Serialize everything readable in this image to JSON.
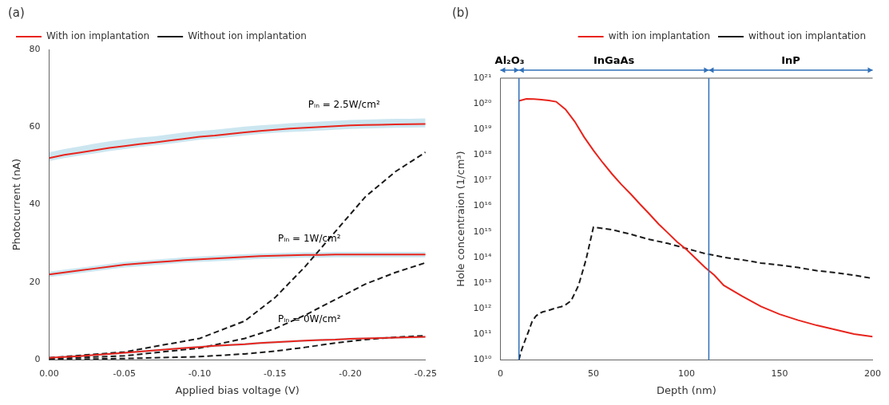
{
  "chart_data": [
    {
      "type": "line",
      "title": "(a)",
      "xlabel": "Applied bias voltage (V)",
      "ylabel": "Photocurrent (nA)",
      "xlim": [
        0.0,
        -0.25
      ],
      "xticks": [
        {
          "value": 0.0,
          "label": "0.00"
        },
        {
          "value": -0.05,
          "label": "-0.05"
        },
        {
          "value": -0.1,
          "label": "-0.10"
        },
        {
          "value": -0.15,
          "label": "-0.15"
        },
        {
          "value": -0.2,
          "label": "-0.20"
        },
        {
          "value": -0.25,
          "label": "-0.25"
        }
      ],
      "ylim": [
        0,
        80
      ],
      "yticks": [
        0,
        20,
        40,
        60,
        80
      ],
      "grid": false,
      "legend": "upper left",
      "band_color": "#b0d8e8",
      "series": [
        {
          "name": "With ion implantation",
          "color": "#e8241c",
          "line_style": "solid",
          "curves": [
            {
              "x": [
                0.0,
                -0.01,
                -0.02,
                -0.03,
                -0.04,
                -0.05,
                -0.06,
                -0.07,
                -0.08,
                -0.09,
                -0.1,
                -0.11,
                -0.12,
                -0.13,
                -0.14,
                -0.15,
                -0.16,
                -0.17,
                -0.18,
                -0.19,
                -0.2,
                -0.21,
                -0.22,
                -0.23,
                -0.24,
                -0.25
              ],
              "values": [
                52.0,
                52.8,
                53.4,
                54.0,
                54.6,
                55.1,
                55.6,
                56.0,
                56.5,
                57.0,
                57.5,
                57.8,
                58.2,
                58.6,
                59.0,
                59.3,
                59.6,
                59.8,
                60.0,
                60.2,
                60.4,
                60.5,
                60.6,
                60.7,
                60.75,
                60.8
              ],
              "band_low": [
                51.2,
                52.0,
                52.6,
                53.2,
                53.8,
                54.3,
                54.8,
                55.3,
                55.7,
                56.2,
                56.7,
                57.0,
                57.4,
                57.8,
                58.2,
                58.5,
                58.7,
                58.9,
                59.1,
                59.3,
                59.5,
                59.6,
                59.7,
                59.8,
                59.85,
                59.9
              ],
              "band_high": [
                53.5,
                54.3,
                55.0,
                55.7,
                56.3,
                56.8,
                57.3,
                57.6,
                58.1,
                58.6,
                59.0,
                59.3,
                59.7,
                60.1,
                60.4,
                60.7,
                61.0,
                61.2,
                61.4,
                61.6,
                61.8,
                61.9,
                62.0,
                62.1,
                62.1,
                62.2
              ]
            },
            {
              "x": [
                0.0,
                -0.01,
                -0.02,
                -0.03,
                -0.04,
                -0.05,
                -0.06,
                -0.07,
                -0.08,
                -0.09,
                -0.1,
                -0.11,
                -0.12,
                -0.13,
                -0.14,
                -0.15,
                -0.16,
                -0.17,
                -0.18,
                -0.19,
                -0.2,
                -0.21,
                -0.22,
                -0.23,
                -0.24,
                -0.25
              ],
              "values": [
                22.0,
                22.5,
                23.0,
                23.5,
                24.0,
                24.5,
                24.8,
                25.1,
                25.4,
                25.7,
                25.9,
                26.1,
                26.3,
                26.5,
                26.7,
                26.8,
                26.9,
                27.0,
                27.0,
                27.1,
                27.1,
                27.1,
                27.1,
                27.1,
                27.1,
                27.1
              ],
              "band_low": [
                21.3,
                21.8,
                22.3,
                22.8,
                23.3,
                23.8,
                24.1,
                24.4,
                24.7,
                25.0,
                25.2,
                25.4,
                25.6,
                25.8,
                26.0,
                26.1,
                26.2,
                26.3,
                26.3,
                26.4,
                26.4,
                26.4,
                26.4,
                26.4,
                26.4,
                26.4
              ],
              "band_high": [
                22.7,
                23.2,
                23.7,
                24.2,
                24.7,
                25.2,
                25.5,
                25.8,
                26.1,
                26.4,
                26.6,
                26.8,
                27.0,
                27.2,
                27.4,
                27.5,
                27.6,
                27.7,
                27.7,
                27.8,
                27.8,
                27.8,
                27.8,
                27.8,
                27.8,
                27.8
              ]
            },
            {
              "x": [
                0.0,
                -0.01,
                -0.02,
                -0.03,
                -0.04,
                -0.05,
                -0.06,
                -0.07,
                -0.08,
                -0.09,
                -0.1,
                -0.11,
                -0.12,
                -0.13,
                -0.14,
                -0.15,
                -0.16,
                -0.17,
                -0.18,
                -0.19,
                -0.2,
                -0.21,
                -0.22,
                -0.23,
                -0.24,
                -0.25
              ],
              "values": [
                0.5,
                0.7,
                0.9,
                1.2,
                1.5,
                1.8,
                2.1,
                2.4,
                2.7,
                3.0,
                3.3,
                3.6,
                3.8,
                4.0,
                4.3,
                4.5,
                4.7,
                4.9,
                5.1,
                5.2,
                5.4,
                5.5,
                5.6,
                5.7,
                5.8,
                5.9
              ],
              "band_low": [
                0.2,
                0.4,
                0.6,
                0.9,
                1.2,
                1.5,
                1.8,
                2.1,
                2.4,
                2.7,
                3.0,
                3.3,
                3.5,
                3.7,
                4.0,
                4.2,
                4.4,
                4.6,
                4.8,
                4.9,
                5.1,
                5.2,
                5.3,
                5.4,
                5.5,
                5.6
              ],
              "band_high": [
                0.8,
                1.0,
                1.2,
                1.5,
                1.8,
                2.1,
                2.4,
                2.7,
                3.0,
                3.3,
                3.6,
                3.9,
                4.1,
                4.3,
                4.6,
                4.8,
                5.0,
                5.2,
                5.4,
                5.5,
                5.7,
                5.8,
                5.9,
                6.0,
                6.1,
                6.2
              ]
            }
          ]
        },
        {
          "name": "Without ion implantation",
          "color": "#1a1a1a",
          "line_style": "dashed",
          "curves": [
            {
              "x": [
                0.0,
                -0.01,
                -0.05,
                -0.1,
                -0.13,
                -0.15,
                -0.17,
                -0.19,
                -0.21,
                -0.23,
                -0.25
              ],
              "values": [
                0.5,
                0.8,
                2.0,
                5.5,
                10.0,
                16.0,
                24.0,
                33.0,
                42.0,
                48.5,
                53.5
              ]
            },
            {
              "x": [
                0.0,
                -0.01,
                -0.05,
                -0.1,
                -0.13,
                -0.15,
                -0.17,
                -0.19,
                -0.21,
                -0.23,
                -0.25
              ],
              "values": [
                0.2,
                0.4,
                1.0,
                3.0,
                5.5,
                8.0,
                11.5,
                15.5,
                19.5,
                22.5,
                25.0
              ]
            },
            {
              "x": [
                0.0,
                -0.01,
                -0.05,
                -0.1,
                -0.13,
                -0.15,
                -0.17,
                -0.19,
                -0.21,
                -0.23,
                -0.25
              ],
              "values": [
                0.05,
                0.1,
                0.3,
                0.8,
                1.5,
                2.2,
                3.2,
                4.3,
                5.2,
                5.8,
                6.2
              ]
            }
          ]
        }
      ],
      "annotations": [
        {
          "text": "Pᵢₙ = 2.5W/cm²",
          "x": -0.172,
          "y": 65.0
        },
        {
          "text": "Pᵢₙ = 1W/cm²",
          "x": -0.152,
          "y": 30.5
        },
        {
          "text": "Pᵢₙ = 0W/cm²",
          "x": -0.152,
          "y": 9.8
        }
      ]
    },
    {
      "type": "line",
      "log": "y",
      "title": "(b)",
      "xlabel": "Depth (nm)",
      "ylabel": "Hole concentraion (1/cm³)",
      "xlim": [
        0,
        200
      ],
      "xticks": [
        0,
        50,
        100,
        150,
        200
      ],
      "ylim": [
        10000000000.0,
        1e+21
      ],
      "yticks": [
        {
          "value": 10000000000.0,
          "label": "10¹⁰"
        },
        {
          "value": 100000000000.0,
          "label": "10¹¹"
        },
        {
          "value": 1000000000000.0,
          "label": "10¹²"
        },
        {
          "value": 10000000000000.0,
          "label": "10¹³"
        },
        {
          "value": 100000000000000.0,
          "label": "10¹⁴"
        },
        {
          "value": 1000000000000000.0,
          "label": "10¹⁵"
        },
        {
          "value": 1e+16,
          "label": "10¹⁶"
        },
        {
          "value": 1e+17,
          "label": "10¹⁷"
        },
        {
          "value": 1e+18,
          "label": "10¹⁸"
        },
        {
          "value": 1e+19,
          "label": "10¹⁹"
        },
        {
          "value": 1e+20,
          "label": "10²⁰"
        },
        {
          "value": 1e+21,
          "label": "10²¹"
        }
      ],
      "grid": false,
      "legend": "upper right",
      "series": [
        {
          "name": "with ion implantation",
          "color": "#e8241c",
          "line_style": "solid",
          "x": [
            10,
            14,
            18,
            22,
            26,
            30,
            35,
            40,
            45,
            50,
            55,
            60,
            65,
            70,
            75,
            80,
            85,
            90,
            95,
            100,
            105,
            110,
            115,
            120,
            130,
            140,
            150,
            160,
            170,
            180,
            190,
            200
          ],
          "values": [
            1.3e+20,
            1.55e+20,
            1.52e+20,
            1.45e+20,
            1.35e+20,
            1.2e+20,
            6e+19,
            2e+19,
            5e+18,
            1.5e+18,
            5e+17,
            1.8e+17,
            7e+16,
            3e+16,
            1.2e+16,
            5000000000000000.0,
            2000000000000000.0,
            900000000000000.0,
            400000000000000.0,
            200000000000000.0,
            90000000000000.0,
            40000000000000.0,
            20000000000000.0,
            8000000000000.0,
            3000000000000.0,
            1200000000000.0,
            600000000000.0,
            350000000000.0,
            220000000000.0,
            150000000000.0,
            100000000000.0,
            80000000000.0
          ]
        },
        {
          "name": "without ion implantation",
          "color": "#1a1a1a",
          "line_style": "dashed",
          "x": [
            10,
            11,
            13,
            15,
            17,
            19,
            21,
            23,
            25,
            27,
            29,
            31,
            33,
            35,
            38,
            42,
            46,
            50,
            60,
            70,
            80,
            90,
            100,
            110,
            115,
            120,
            130,
            140,
            150,
            160,
            170,
            180,
            190,
            200
          ],
          "values": [
            10000000000.0,
            20000000000.0,
            50000000000.0,
            120000000000.0,
            300000000000.0,
            500000000000.0,
            650000000000.0,
            750000000000.0,
            800000000000.0,
            900000000000.0,
            1000000000000.0,
            1100000000000.0,
            1200000000000.0,
            1400000000000.0,
            2000000000000.0,
            8000000000000.0,
            80000000000000.0,
            1500000000000000.0,
            1200000000000000.0,
            800000000000000.0,
            500000000000000.0,
            350000000000000.0,
            220000000000000.0,
            140000000000000.0,
            120000000000000.0,
            100000000000000.0,
            80000000000000.0,
            60000000000000.0,
            50000000000000.0,
            40000000000000.0,
            30000000000000.0,
            25000000000000.0,
            20000000000000.0,
            15000000000000.0
          ]
        }
      ],
      "vlines": [
        {
          "x": 10,
          "color": "#3070b8"
        },
        {
          "x": 112,
          "color": "#3070b8"
        }
      ],
      "hlines": [
        {
          "y": 1e+21,
          "color": "#555555"
        }
      ],
      "regions": [
        {
          "label": "Al₂O₃",
          "from": 0,
          "to": 10,
          "color": "#3070b8"
        },
        {
          "label": "InGaAs",
          "from": 10,
          "to": 112,
          "color": "#3070b8"
        },
        {
          "label": "InP",
          "from": 112,
          "to": 200,
          "color": "#3070b8"
        }
      ]
    }
  ]
}
